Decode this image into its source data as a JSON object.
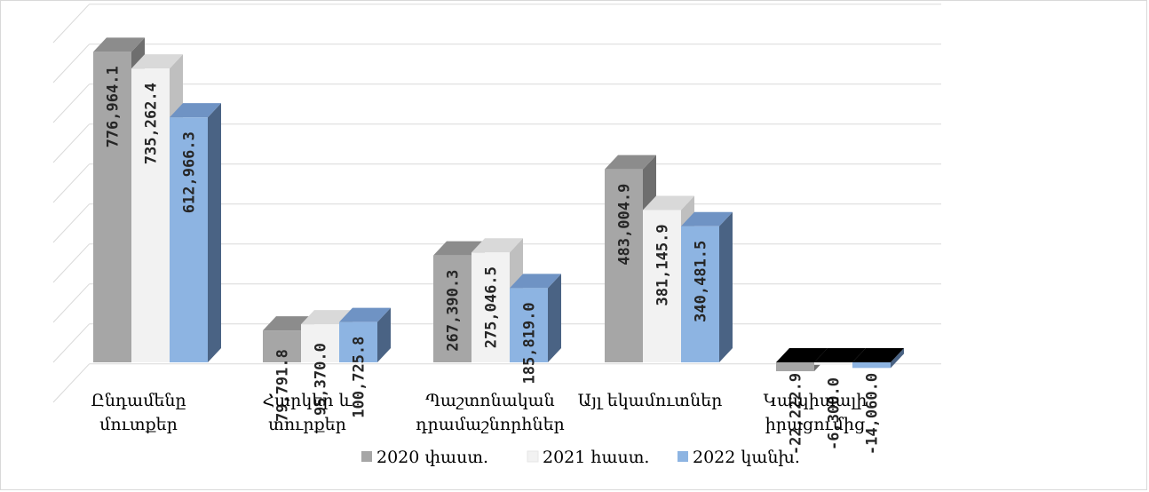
{
  "chart_data": {
    "type": "bar",
    "title": "",
    "xlabel": "",
    "ylabel": "",
    "ylim": [
      -100000,
      800000
    ],
    "grid": true,
    "legend_position": "bottom",
    "categories": [
      [
        "Ընդամենը",
        "մուտքեր"
      ],
      [
        "Հարկեր և",
        "տուրքեր"
      ],
      [
        "Պաշտոնական",
        "դրամաշնորհներ"
      ],
      [
        "Այլ եկամուտներ"
      ],
      [
        "Կապիտալի",
        "իրացումից"
      ]
    ],
    "series": [
      {
        "name": "2020 փաստ.",
        "color": "#a6a6a6",
        "side_color": "#6e6e6e",
        "top_color": "#8c8c8c",
        "values": [
          776964.1,
          79791.8,
          267390.3,
          483004.9,
          -22222.9
        ],
        "labels": [
          "776,964.1",
          "79,791.8",
          "267,390.3",
          "483,004.9",
          "-22,222.9"
        ]
      },
      {
        "name": "2021 հաստ.",
        "color": "#f2f2f2",
        "side_color": "#bfbfbf",
        "top_color": "#d9d9d9",
        "values": [
          735262.4,
          95370.0,
          275046.5,
          381145.9,
          -6300.0
        ],
        "labels": [
          "735,262.4",
          "95,370.0",
          "275,046.5",
          "381,145.9",
          "-6,300.0"
        ]
      },
      {
        "name": "2022 կանխ.",
        "color": "#8db4e2",
        "side_color": "#4a6384",
        "top_color": "#6f93c4",
        "values": [
          612966.3,
          100725.8,
          185819.0,
          340481.5,
          -14060.0
        ],
        "labels": [
          "612,966.3",
          "100,725.8",
          "185,819.0",
          "340,481.5",
          "-14,060.0"
        ]
      }
    ]
  }
}
